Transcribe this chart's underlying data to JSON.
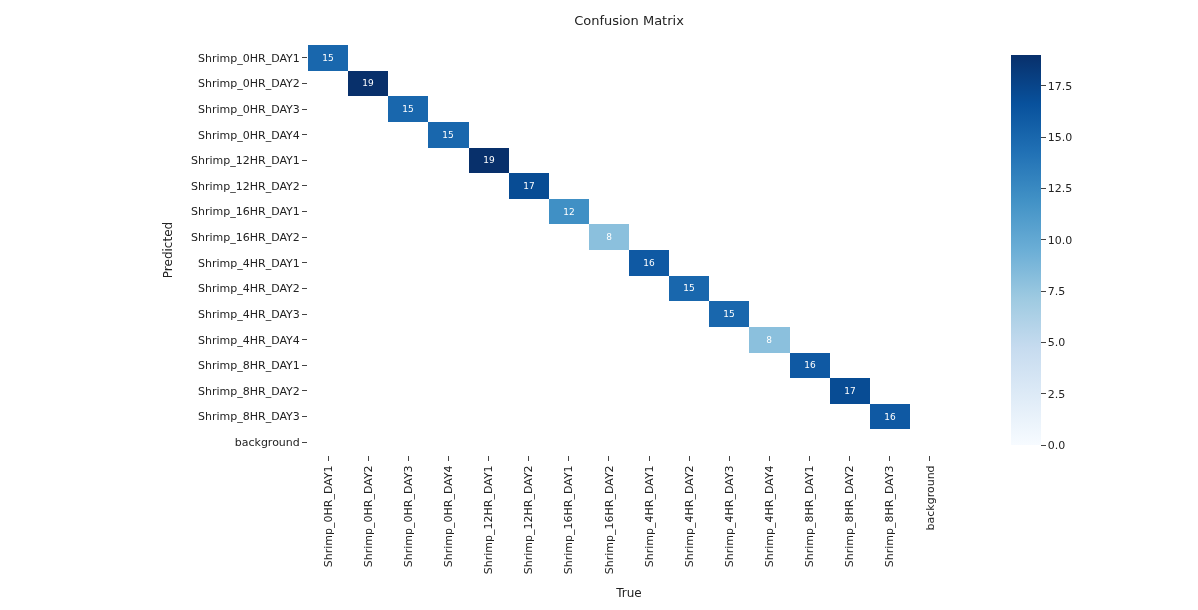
{
  "chart_data": {
    "type": "heatmap",
    "title": "Confusion Matrix",
    "xlabel": "True",
    "ylabel": "Predicted",
    "categories": [
      "Shrimp_0HR_DAY1",
      "Shrimp_0HR_DAY2",
      "Shrimp_0HR_DAY3",
      "Shrimp_0HR_DAY4",
      "Shrimp_12HR_DAY1",
      "Shrimp_12HR_DAY2",
      "Shrimp_16HR_DAY1",
      "Shrimp_16HR_DAY2",
      "Shrimp_4HR_DAY1",
      "Shrimp_4HR_DAY2",
      "Shrimp_4HR_DAY3",
      "Shrimp_4HR_DAY4",
      "Shrimp_8HR_DAY1",
      "Shrimp_8HR_DAY2",
      "Shrimp_8HR_DAY3",
      "background"
    ],
    "y_categories": [
      "Shrimp_0HR_DAY1",
      "Shrimp_0HR_DAY2",
      "Shrimp_0HR_DAY3",
      "Shrimp_0HR_DAY4",
      "Shrimp_12HR_DAY1",
      "Shrimp_12HR_DAY2",
      "Shrimp_16HR_DAY1",
      "Shrimp_16HR_DAY2",
      "Shrimp_4HR_DAY1",
      "Shrimp_4HR_DAY2",
      "Shrimp_4HR_DAY3",
      "Shrimp_4HR_DAY4",
      "Shrimp_8HR_DAY1",
      "Shrimp_8HR_DAY2",
      "Shrimp_8HR_DAY3",
      "background"
    ],
    "cells": [
      [
        15,
        null,
        null,
        null,
        null,
        null,
        null,
        null,
        null,
        null,
        null,
        null,
        null,
        null,
        null,
        null
      ],
      [
        null,
        19,
        null,
        null,
        null,
        null,
        null,
        null,
        null,
        null,
        null,
        null,
        null,
        null,
        null,
        null
      ],
      [
        null,
        null,
        15,
        null,
        null,
        null,
        null,
        null,
        null,
        null,
        null,
        null,
        null,
        null,
        null,
        null
      ],
      [
        null,
        null,
        null,
        15,
        null,
        null,
        null,
        null,
        null,
        null,
        null,
        null,
        null,
        null,
        null,
        null
      ],
      [
        null,
        null,
        null,
        null,
        19,
        null,
        null,
        null,
        null,
        null,
        null,
        null,
        null,
        null,
        null,
        null
      ],
      [
        null,
        null,
        null,
        null,
        null,
        17,
        null,
        null,
        null,
        null,
        null,
        null,
        null,
        null,
        null,
        null
      ],
      [
        null,
        null,
        null,
        null,
        null,
        null,
        12,
        null,
        null,
        null,
        null,
        null,
        null,
        null,
        null,
        null
      ],
      [
        null,
        null,
        null,
        null,
        null,
        null,
        null,
        8,
        null,
        null,
        null,
        null,
        null,
        null,
        null,
        null
      ],
      [
        null,
        null,
        null,
        null,
        null,
        null,
        null,
        null,
        16,
        null,
        null,
        null,
        null,
        null,
        null,
        null
      ],
      [
        null,
        null,
        null,
        null,
        null,
        null,
        null,
        null,
        null,
        15,
        null,
        null,
        null,
        null,
        null,
        null
      ],
      [
        null,
        null,
        null,
        null,
        null,
        null,
        null,
        null,
        null,
        null,
        15,
        null,
        null,
        null,
        null,
        null
      ],
      [
        null,
        null,
        null,
        null,
        null,
        null,
        null,
        null,
        null,
        null,
        null,
        8,
        null,
        null,
        null,
        null
      ],
      [
        null,
        null,
        null,
        null,
        null,
        null,
        null,
        null,
        null,
        null,
        null,
        null,
        16,
        null,
        null,
        null
      ],
      [
        null,
        null,
        null,
        null,
        null,
        null,
        null,
        null,
        null,
        null,
        null,
        null,
        null,
        17,
        null,
        null
      ],
      [
        null,
        null,
        null,
        null,
        null,
        null,
        null,
        null,
        null,
        null,
        null,
        null,
        null,
        null,
        16,
        null
      ],
      [
        null,
        null,
        null,
        null,
        null,
        null,
        null,
        null,
        null,
        null,
        null,
        null,
        null,
        null,
        null,
        null
      ]
    ],
    "clim": [
      0,
      19
    ],
    "cticks": [
      {
        "value": 0,
        "label": "0.0"
      },
      {
        "value": 2.5,
        "label": "2.5"
      },
      {
        "value": 5,
        "label": "5.0"
      },
      {
        "value": 7.5,
        "label": "7.5"
      },
      {
        "value": 10,
        "label": "10.0"
      },
      {
        "value": 12.5,
        "label": "12.5"
      },
      {
        "value": 15,
        "label": "15.0"
      },
      {
        "value": 17.5,
        "label": "17.5"
      }
    ],
    "data_labels": true
  }
}
